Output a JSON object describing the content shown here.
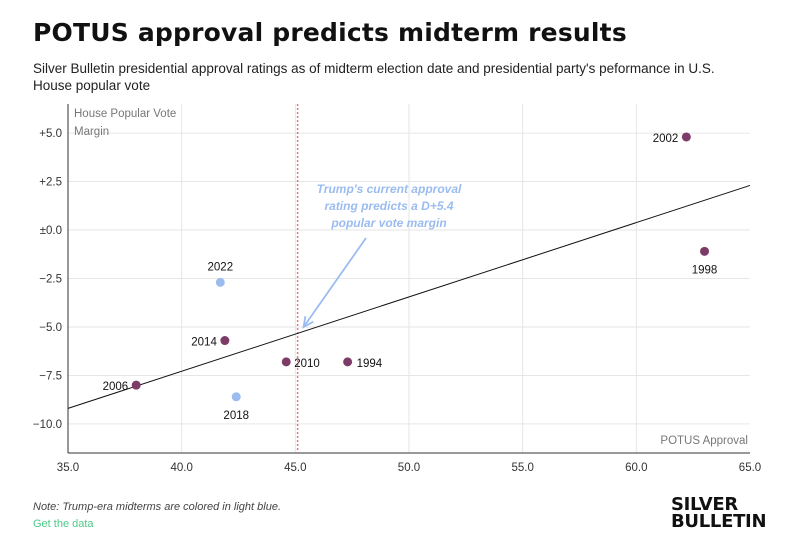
{
  "title": "POTUS approval predicts midterm results",
  "subtitle": "Silver Bulletin presidential approval ratings as of midterm election date and presidential party's peformance in U.S. House popular vote",
  "note": "Note: Trump-era midterms are colored in light blue.",
  "get_data": "Get the data",
  "brand": {
    "line1": "SILVER",
    "line2": "BULLETIN"
  },
  "colors": {
    "normal": "#7d3c67",
    "trump": "#9bbcf0",
    "trend": "#111111",
    "marker_line": "#e07a7a",
    "annotation": "#9bbcf0"
  },
  "chart_data": {
    "type": "scatter",
    "xlabel": "POTUS Approval",
    "ylabel": "House Popular Vote Margin",
    "xlim": [
      35,
      65
    ],
    "ylim": [
      -11.5,
      6.5
    ],
    "xticks": [
      35,
      40,
      45,
      50,
      55,
      60,
      65
    ],
    "xtick_labels": [
      "35.0",
      "40.0",
      "45.0",
      "50.0",
      "55.0",
      "60.0",
      "65.0"
    ],
    "yticks": [
      5,
      2.5,
      0,
      -2.5,
      -5,
      -7.5,
      -10
    ],
    "ytick_labels": [
      "+5.0",
      "+2.5",
      "±0.0",
      "−2.5",
      "−5.0",
      "−7.5",
      "−10.0"
    ],
    "grid": true,
    "points": [
      {
        "label": "1994",
        "x": 47.3,
        "y": -6.8,
        "trump": false
      },
      {
        "label": "1998",
        "x": 63.0,
        "y": -1.1,
        "trump": false
      },
      {
        "label": "2002",
        "x": 62.2,
        "y": 4.8,
        "trump": false
      },
      {
        "label": "2006",
        "x": 38.0,
        "y": -8.0,
        "trump": false
      },
      {
        "label": "2010",
        "x": 44.6,
        "y": -6.8,
        "trump": false
      },
      {
        "label": "2014",
        "x": 41.9,
        "y": -5.7,
        "trump": false
      },
      {
        "label": "2018",
        "x": 42.4,
        "y": -8.6,
        "trump": true
      },
      {
        "label": "2022",
        "x": 41.7,
        "y": -2.7,
        "trump": true
      }
    ],
    "trendline": {
      "x": [
        35,
        65
      ],
      "y": [
        -9.2,
        2.3
      ]
    },
    "current_approval": 45.1,
    "annotation": "Trump's current approval rating predicts a D+5.4 popular vote margin"
  }
}
